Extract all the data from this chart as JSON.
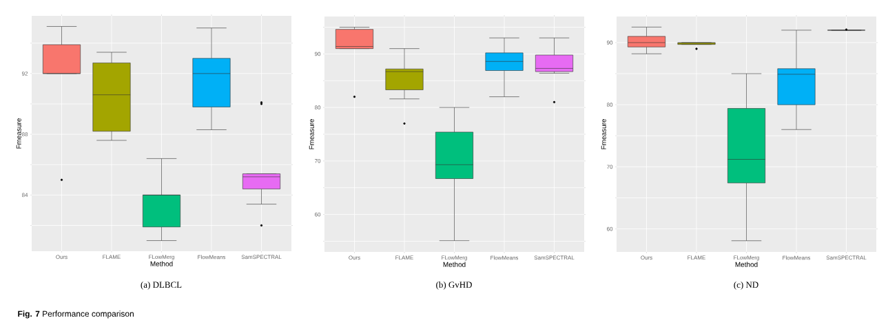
{
  "chart_data": [
    {
      "type": "box",
      "title": "(a) DLBCL",
      "xlabel": "Method",
      "ylabel": "Fmeasure",
      "categories": [
        "Ours",
        "FLAME",
        "FLowMerg",
        "FlowMeans",
        "SamSPECTRAL"
      ],
      "colors": [
        "#f8766d",
        "#a3a500",
        "#00bf7d",
        "#00b0f6",
        "#e76bf3"
      ],
      "ylim": [
        80.3,
        95.8
      ],
      "yticks": [
        {
          "value": 82,
          "label": null
        },
        84,
        {
          "value": 86,
          "label": null
        },
        88,
        {
          "value": 90,
          "label": null
        },
        92,
        {
          "value": 94,
          "label": null
        }
      ],
      "grid": true,
      "annotations": [
        "**Fig. 7** Performance comparison"
      ],
      "boxes": [
        {
          "low": 92.0,
          "q1": 92.0,
          "median": 92.0,
          "q3": 93.9,
          "high": 95.1,
          "outliers": [
            85.0
          ]
        },
        {
          "low": 87.6,
          "q1": 88.2,
          "median": 90.6,
          "q3": 92.7,
          "high": 93.4
        },
        {
          "low": 81.0,
          "q1": 81.9,
          "median": 84.0,
          "q3": 84.0,
          "high": 86.4
        },
        {
          "low": 88.3,
          "q1": 89.8,
          "median": 92.0,
          "q3": 93.0,
          "high": 95.0
        },
        {
          "low": 83.4,
          "q1": 84.4,
          "median": 85.2,
          "q3": 85.4,
          "high": 85.4,
          "outliers": [
            90.0,
            90.1,
            82.0
          ]
        }
      ]
    },
    {
      "type": "box",
      "title": "(b) GvHD",
      "xlabel": "Method",
      "ylabel": "Fmeasure",
      "categories": [
        "Ours",
        "FLAME",
        "FLowMerg",
        "FlowMeans",
        "SamSPECTRAL"
      ],
      "colors": [
        "#f8766d",
        "#a3a500",
        "#00bf7d",
        "#00b0f6",
        "#e76bf3"
      ],
      "ylim": [
        53,
        97
      ],
      "yticks": [
        {
          "value": 55,
          "label": null
        },
        60,
        {
          "value": 65,
          "label": null
        },
        70,
        {
          "value": 75,
          "label": null
        },
        80,
        {
          "value": 85,
          "label": null
        },
        90,
        {
          "value": 95,
          "label": null
        }
      ],
      "grid": true,
      "boxes": [
        {
          "low": 91.0,
          "q1": 91.0,
          "median": 91.4,
          "q3": 94.6,
          "high": 95.0,
          "outliers": [
            82.0
          ]
        },
        {
          "low": 81.6,
          "q1": 83.3,
          "median": 86.7,
          "q3": 87.2,
          "high": 91.0,
          "outliers": [
            77.0
          ]
        },
        {
          "low": 55.1,
          "q1": 66.7,
          "median": 69.3,
          "q3": 75.4,
          "high": 80.0
        },
        {
          "low": 82.0,
          "q1": 86.9,
          "median": 88.6,
          "q3": 90.2,
          "high": 93.0
        },
        {
          "low": 86.4,
          "q1": 86.7,
          "median": 87.3,
          "q3": 89.8,
          "high": 93.0,
          "outliers": [
            81.0
          ]
        }
      ]
    },
    {
      "type": "box",
      "title": "(c) ND",
      "xlabel": "Method",
      "ylabel": "Fmeasure",
      "categories": [
        "Ours",
        "FLAME",
        "FLowMerg",
        "FlowMeans",
        "SamSPECTRAL"
      ],
      "colors": [
        "#f8766d",
        "#a3a500",
        "#00bf7d",
        "#00b0f6",
        "#333333"
      ],
      "ylim": [
        56.3,
        94.2
      ],
      "yticks": [
        60,
        {
          "value": 65,
          "label": null
        },
        70,
        {
          "value": 75,
          "label": null
        },
        80,
        {
          "value": 85,
          "label": null
        },
        90
      ],
      "grid": true,
      "boxes": [
        {
          "low": 88.2,
          "q1": 89.3,
          "median": 90.0,
          "q3": 91.0,
          "high": 92.5
        },
        {
          "low": 89.7,
          "q1": 89.7,
          "median": 89.9,
          "q3": 90.0,
          "high": 90.0,
          "outliers": [
            89.0
          ]
        },
        {
          "low": 58.1,
          "q1": 67.4,
          "median": 71.2,
          "q3": 79.4,
          "high": 85.0
        },
        {
          "low": 76.0,
          "q1": 80.0,
          "median": 84.9,
          "q3": 85.8,
          "high": 92.0
        },
        {
          "low": 92.0,
          "q1": 92.0,
          "median": 92.0,
          "q3": 92.0,
          "high": 92.0,
          "outliers": [
            92.1
          ]
        }
      ]
    }
  ]
}
